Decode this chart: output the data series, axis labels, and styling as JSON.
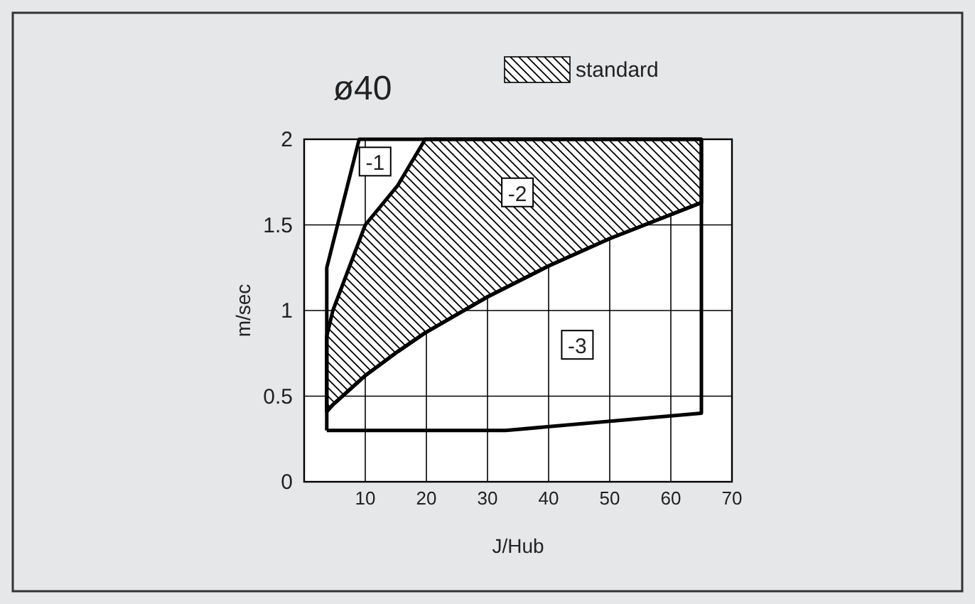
{
  "chart_data": {
    "type": "line",
    "title": "ø40",
    "xlabel": "J/Hub",
    "ylabel": "m/sec",
    "xlim": [
      0,
      70
    ],
    "ylim": [
      0,
      2
    ],
    "xticks": [
      10,
      20,
      30,
      40,
      50,
      60,
      70
    ],
    "yticks": [
      0,
      0.5,
      1,
      1.5,
      2
    ],
    "grid": true,
    "legend": "top",
    "marker": "none",
    "line_style": "solid",
    "series": [
      {
        "type": "area",
        "name": "standard",
        "color": "#000000",
        "x": [
          3.7,
          4.7,
          10,
          15.3,
          19.8,
          30,
          40,
          50,
          65
        ],
        "values": [
          0.85,
          1.0,
          1.5,
          1.73,
          2,
          2,
          2,
          2,
          2
        ]
      },
      {
        "color": "#000000",
        "x": [
          3.7,
          4.7,
          10,
          15.3,
          19.8,
          30,
          40,
          50,
          65
        ],
        "values": [
          0.41,
          0.45,
          0.62,
          0.76,
          0.87,
          1.08,
          1.26,
          1.42,
          1.63
        ]
      },
      {
        "color": "#000000",
        "x": [
          3.7,
          3.7,
          9,
          65
        ],
        "values": [
          0.3,
          1.25,
          2,
          2
        ]
      },
      {
        "color": "#000000",
        "x": [
          3.7,
          33,
          65,
          65
        ],
        "values": [
          0.3,
          0.3,
          0.4,
          2
        ]
      }
    ],
    "annotations": [
      {
        "text": "-1",
        "x": 11.6,
        "y": 1.87
      },
      {
        "text": "-2",
        "x": 34.9,
        "y": 1.69
      },
      {
        "text": "-3",
        "x": 44.7,
        "y": 0.8
      }
    ]
  }
}
